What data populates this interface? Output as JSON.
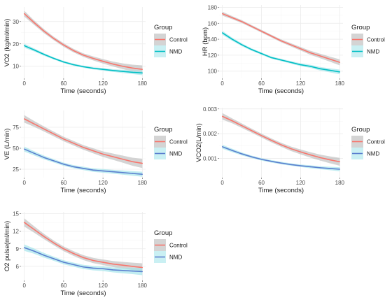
{
  "legend": {
    "title": "Group",
    "items": [
      {
        "label": "Control",
        "color": "#F8766D"
      },
      {
        "label": "NMD",
        "color": "#00BFC4"
      }
    ]
  },
  "colors": {
    "control_line": "#F8766D",
    "control_band": "#b0b0b0",
    "nmd_line_teal": "#00BFC4",
    "nmd_line_blue": "#5B7FCF",
    "nmd_band": "#9fe3ea"
  },
  "chart_data": [
    {
      "type": "line",
      "xlabel": "Time (seconds)",
      "ylabel": "VO2 (kg/ml/min)",
      "xlim": [
        -5,
        185
      ],
      "ylim": [
        4.6,
        36.5
      ],
      "xticks": [
        0,
        60,
        120,
        180
      ],
      "yticks": [
        10,
        20,
        30
      ],
      "ytick_labels": [
        "10",
        "20",
        "30"
      ],
      "nmd_line_style": "teal",
      "grid": true,
      "legend_position": "right",
      "x": [
        0,
        15,
        30,
        45,
        60,
        75,
        90,
        105,
        120,
        135,
        150,
        165,
        180
      ],
      "series": [
        {
          "name": "Control",
          "values": [
            33.5,
            29.5,
            25.7,
            22.4,
            19.5,
            17.0,
            15.0,
            13.5,
            12.2,
            11.0,
            10.0,
            9.2,
            8.6
          ],
          "ci": [
            1.3,
            1.0,
            0.9,
            0.8,
            0.8,
            0.8,
            0.8,
            0.9,
            1.0,
            1.1,
            1.3,
            1.5,
            1.8
          ]
        },
        {
          "name": "NMD",
          "values": [
            19.2,
            17.3,
            15.3,
            13.5,
            11.9,
            10.7,
            9.8,
            9.1,
            8.6,
            8.1,
            7.7,
            7.3,
            7.0
          ],
          "ci": [
            0.9,
            0.7,
            0.6,
            0.5,
            0.5,
            0.5,
            0.5,
            0.5,
            0.6,
            0.6,
            0.7,
            0.8,
            1.0
          ]
        }
      ]
    },
    {
      "type": "line",
      "xlabel": "Time (seconds)",
      "ylabel": "HR (bpm)",
      "xlim": [
        -5,
        185
      ],
      "ylim": [
        91,
        183
      ],
      "xticks": [
        0,
        60,
        120,
        180
      ],
      "yticks": [
        100,
        120,
        140,
        160,
        180
      ],
      "ytick_labels": [
        "100",
        "120",
        "140",
        "160",
        "180"
      ],
      "nmd_line_style": "teal",
      "grid": true,
      "legend_position": "right",
      "x": [
        0,
        15,
        30,
        45,
        60,
        75,
        90,
        105,
        120,
        135,
        150,
        165,
        180
      ],
      "series": [
        {
          "name": "Control",
          "values": [
            172,
            167,
            162,
            156,
            150,
            144,
            138,
            133,
            128,
            123,
            119,
            115,
            111
          ],
          "ci": [
            2.5,
            2.0,
            1.8,
            1.7,
            1.7,
            1.7,
            1.8,
            2.0,
            2.2,
            2.5,
            2.8,
            3.2,
            3.8
          ]
        },
        {
          "name": "NMD",
          "values": [
            148,
            140,
            133,
            127,
            122,
            117,
            114,
            111,
            108,
            106,
            103,
            101,
            99
          ],
          "ci": [
            2.5,
            2.0,
            1.8,
            1.6,
            1.5,
            1.5,
            1.5,
            1.6,
            1.8,
            2.0,
            2.2,
            2.5,
            3.0
          ]
        }
      ]
    },
    {
      "type": "line",
      "xlabel": "Time (seconds)",
      "ylabel": "VE (L/min)",
      "xlim": [
        -5,
        185
      ],
      "ylim": [
        15,
        95
      ],
      "xticks": [
        0,
        60,
        120,
        180
      ],
      "yticks": [
        25,
        50,
        75
      ],
      "ytick_labels": [
        "25",
        "50",
        "75"
      ],
      "nmd_line_style": "blue",
      "grid": true,
      "legend_position": "right",
      "x": [
        0,
        15,
        30,
        45,
        60,
        75,
        90,
        105,
        120,
        135,
        150,
        165,
        180
      ],
      "series": [
        {
          "name": "Control",
          "values": [
            85,
            79,
            73,
            67,
            61,
            56,
            51,
            47,
            43,
            40,
            37,
            34,
            32
          ],
          "ci": [
            4.5,
            3.5,
            3.0,
            2.8,
            2.7,
            2.7,
            2.8,
            3.0,
            3.3,
            3.7,
            4.2,
            4.8,
            5.5
          ]
        },
        {
          "name": "NMD",
          "values": [
            49,
            44,
            39,
            35,
            31,
            28,
            26,
            24,
            23,
            22,
            21,
            20,
            19
          ],
          "ci": [
            3.0,
            2.5,
            2.2,
            2.0,
            1.9,
            1.9,
            2.0,
            2.1,
            2.2,
            2.3,
            2.5,
            2.7,
            3.0
          ]
        }
      ]
    },
    {
      "type": "line",
      "xlabel": "Time (seconds)",
      "ylabel": "VCO2(L/min)",
      "xlim": [
        -5,
        185
      ],
      "ylim": [
        0.00022,
        0.00305
      ],
      "xticks": [
        0,
        60,
        120,
        180
      ],
      "yticks": [
        0.001,
        0.002,
        0.003
      ],
      "ytick_labels": [
        "0.001",
        "0.002",
        "0.003"
      ],
      "nmd_line_style": "blue",
      "grid": true,
      "legend_position": "right",
      "x": [
        0,
        15,
        30,
        45,
        60,
        75,
        90,
        105,
        120,
        135,
        150,
        165,
        180
      ],
      "series": [
        {
          "name": "Control",
          "values": [
            0.0027,
            0.00252,
            0.00232,
            0.00212,
            0.00192,
            0.00173,
            0.00155,
            0.00139,
            0.00126,
            0.00114,
            0.00103,
            0.00094,
            0.00086
          ],
          "ci": [
            0.00013,
            0.0001,
            9e-05,
            8e-05,
            8e-05,
            8e-05,
            8e-05,
            9e-05,
            0.0001,
            0.00011,
            0.00012,
            0.00014,
            0.00016
          ]
        },
        {
          "name": "NMD",
          "values": [
            0.00147,
            0.00132,
            0.00118,
            0.00106,
            0.00096,
            0.00088,
            0.00081,
            0.00075,
            0.0007,
            0.00066,
            0.00062,
            0.00059,
            0.00056
          ],
          "ci": [
            8e-05,
            7e-05,
            6e-05,
            5e-05,
            5e-05,
            5e-05,
            5e-05,
            5e-05,
            5e-05,
            6e-05,
            6e-05,
            7e-05,
            8e-05
          ]
        }
      ]
    },
    {
      "type": "line",
      "xlabel": "Time (seconds)",
      "ylabel": "O2 pulse(ml/min)",
      "xlim": [
        -5,
        185
      ],
      "ylim": [
        3.6,
        15.3
      ],
      "xticks": [
        0,
        60,
        120,
        180
      ],
      "yticks": [
        6,
        9,
        12,
        15
      ],
      "ytick_labels": [
        "6",
        "9",
        "12",
        "15"
      ],
      "nmd_line_style": "blue",
      "grid": true,
      "legend_position": "right",
      "x": [
        0,
        15,
        30,
        45,
        60,
        75,
        90,
        105,
        120,
        135,
        150,
        165,
        180
      ],
      "series": [
        {
          "name": "Control",
          "values": [
            13.5,
            12.3,
            11.1,
            10.0,
            9.0,
            8.2,
            7.5,
            7.0,
            6.7,
            6.4,
            6.2,
            6.0,
            5.8
          ],
          "ci": [
            0.7,
            0.55,
            0.45,
            0.4,
            0.4,
            0.4,
            0.42,
            0.45,
            0.48,
            0.52,
            0.57,
            0.63,
            0.72
          ]
        },
        {
          "name": "NMD",
          "values": [
            9.2,
            8.6,
            7.9,
            7.3,
            6.7,
            6.3,
            5.9,
            5.7,
            5.6,
            5.4,
            5.3,
            5.2,
            5.1
          ],
          "ci": [
            0.55,
            0.45,
            0.4,
            0.36,
            0.35,
            0.35,
            0.36,
            0.38,
            0.4,
            0.43,
            0.47,
            0.52,
            0.6
          ]
        }
      ]
    }
  ]
}
